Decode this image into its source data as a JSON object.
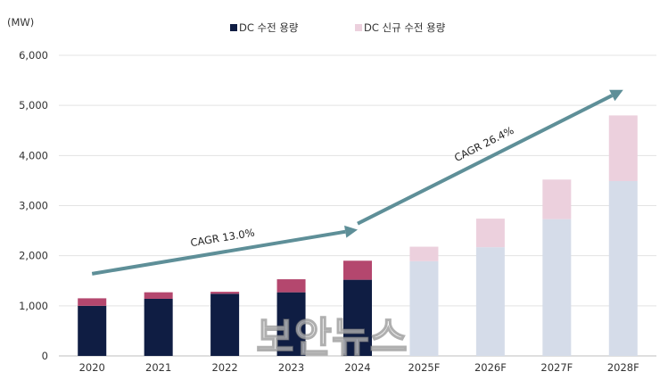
{
  "chart_data": {
    "type": "bar",
    "stacked": true,
    "unit_label": "(MW)",
    "categories": [
      "2020",
      "2021",
      "2022",
      "2023",
      "2024",
      "2025F",
      "2026F",
      "2027F",
      "2028F"
    ],
    "series": [
      {
        "name": "DC 수전 용량",
        "values": [
          1000,
          1140,
          1240,
          1270,
          1520,
          1890,
          2170,
          2730,
          3490
        ],
        "colors": [
          "#0f1d43",
          "#0f1d43",
          "#0f1d43",
          "#0f1d43",
          "#0f1d43",
          "#d5dce9",
          "#d5dce9",
          "#d5dce9",
          "#d5dce9"
        ]
      },
      {
        "name": "DC 신규 수전 용량",
        "values": [
          150,
          130,
          40,
          260,
          380,
          290,
          570,
          790,
          1310
        ],
        "colors": [
          "#b4476e",
          "#b4476e",
          "#b4476e",
          "#b4476e",
          "#b4476e",
          "#ecd0dd",
          "#ecd0dd",
          "#ecd0dd",
          "#ecd0dd"
        ]
      }
    ],
    "y_ticks": [
      "0",
      "1,000",
      "2,000",
      "3,000",
      "4,000",
      "5,000",
      "6,000"
    ],
    "ylim": [
      0,
      6000
    ],
    "grid": true,
    "legend_position": "top-center",
    "annotations": [
      {
        "text": "CAGR 13.0%",
        "from": [
          "2020",
          1640
        ],
        "to": [
          "2024",
          2520
        ]
      },
      {
        "text": "CAGR 26.4%",
        "from": [
          "2024",
          2640
        ],
        "to": [
          "2028F",
          5310
        ]
      }
    ],
    "watermark": "보안뉴스",
    "arrow_color": "#5e8f98"
  }
}
